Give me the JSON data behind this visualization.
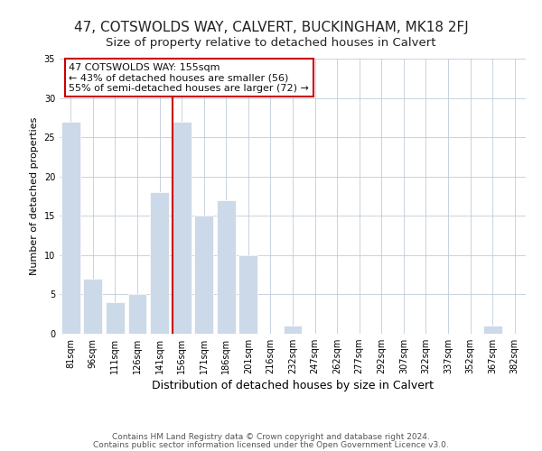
{
  "title": "47, COTSWOLDS WAY, CALVERT, BUCKINGHAM, MK18 2FJ",
  "subtitle": "Size of property relative to detached houses in Calvert",
  "xlabel": "Distribution of detached houses by size in Calvert",
  "ylabel": "Number of detached properties",
  "bins": [
    "81sqm",
    "96sqm",
    "111sqm",
    "126sqm",
    "141sqm",
    "156sqm",
    "171sqm",
    "186sqm",
    "201sqm",
    "216sqm",
    "232sqm",
    "247sqm",
    "262sqm",
    "277sqm",
    "292sqm",
    "307sqm",
    "322sqm",
    "337sqm",
    "352sqm",
    "367sqm",
    "382sqm"
  ],
  "values": [
    27,
    7,
    4,
    5,
    18,
    27,
    15,
    17,
    10,
    0,
    1,
    0,
    0,
    0,
    0,
    0,
    0,
    0,
    0,
    1,
    0
  ],
  "bar_color": "#ccd9e8",
  "bar_edge_color": "#ffffff",
  "highlight_line_index": 5,
  "highlight_line_color": "#cc0000",
  "ylim": [
    0,
    35
  ],
  "yticks": [
    0,
    5,
    10,
    15,
    20,
    25,
    30,
    35
  ],
  "annotation_text": "47 COTSWOLDS WAY: 155sqm\n← 43% of detached houses are smaller (56)\n55% of semi-detached houses are larger (72) →",
  "annotation_box_color": "#ffffff",
  "annotation_box_edge": "#cc0000",
  "footer1": "Contains HM Land Registry data © Crown copyright and database right 2024.",
  "footer2": "Contains public sector information licensed under the Open Government Licence v3.0.",
  "background_color": "#ffffff",
  "grid_color": "#c0ccd8",
  "title_fontsize": 11,
  "subtitle_fontsize": 9.5,
  "xlabel_fontsize": 9,
  "ylabel_fontsize": 8,
  "tick_fontsize": 7,
  "annotation_fontsize": 8,
  "footer_fontsize": 6.5
}
